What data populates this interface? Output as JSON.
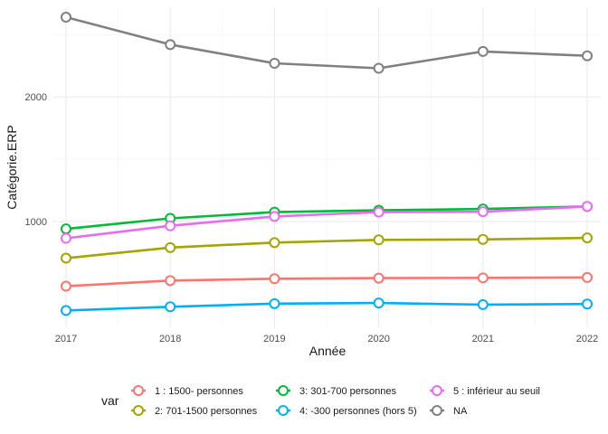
{
  "chart_data": {
    "type": "line",
    "xlabel": "Année",
    "ylabel": "Catégorie.ERP",
    "x": [
      2017,
      2018,
      2019,
      2020,
      2021,
      2022
    ],
    "xlim": [
      2016.87,
      2022.13
    ],
    "ylim": [
      150,
      2720
    ],
    "yticks": [
      1000,
      2000
    ],
    "grid": true,
    "legend": {
      "title": "var",
      "position": "bottom"
    },
    "series": [
      {
        "name": "1 : 1500- personnes",
        "color": "#F8766D",
        "values": [
          480,
          525,
          540,
          545,
          547,
          550
        ]
      },
      {
        "name": "2: 701-1500 personnes",
        "color": "#A3A500",
        "values": [
          705,
          790,
          830,
          852,
          856,
          868
        ]
      },
      {
        "name": "3: 301-700 personnes",
        "color": "#00BA38",
        "values": [
          940,
          1025,
          1075,
          1090,
          1100,
          1120
        ]
      },
      {
        "name": "4: -300 personnes (hors 5)",
        "color": "#00B0F6",
        "values": [
          285,
          315,
          340,
          345,
          332,
          337
        ]
      },
      {
        "name": "5 : inférieur au seuil",
        "color": "#E76BF3",
        "values": [
          865,
          965,
          1040,
          1075,
          1078,
          1120
        ]
      },
      {
        "name": "NA",
        "color": "#808080",
        "values": [
          2640,
          2420,
          2270,
          2230,
          2365,
          2330
        ]
      }
    ]
  }
}
